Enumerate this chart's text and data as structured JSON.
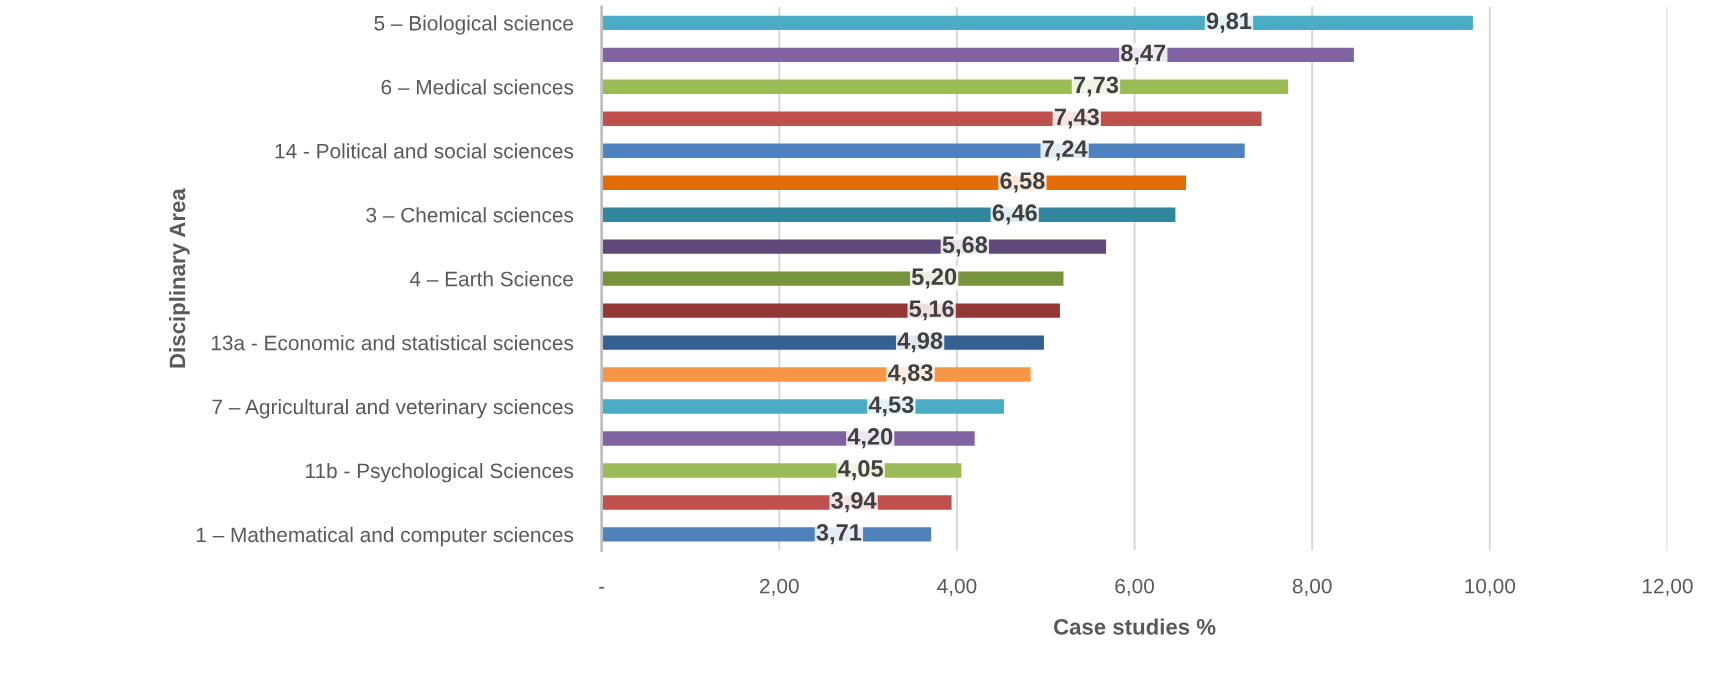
{
  "chart_data": {
    "type": "bar",
    "orientation": "horizontal",
    "xlabel": "Case studies %",
    "ylabel": "Disciplinary Area",
    "categories": [
      "5 – Biological science",
      null,
      "6 – Medical sciences",
      null,
      "14 - Political and social sciences",
      null,
      "3 – Chemical sciences",
      null,
      "4 – Earth Science",
      null,
      "13a - Economic and statistical sciences",
      null,
      "7 – Agricultural and veterinary sciences",
      null,
      "11b - Psychological Sciences",
      null,
      "1 – Mathematical and computer sciences"
    ],
    "values": [
      9.81,
      8.47,
      7.73,
      7.43,
      7.24,
      6.58,
      6.46,
      5.68,
      5.2,
      5.16,
      4.98,
      4.83,
      4.53,
      4.2,
      4.05,
      3.94,
      3.71
    ],
    "colors": [
      "#4bacc6",
      "#8064a2",
      "#9bbb59",
      "#c0504d",
      "#4f81bd",
      "#e36c09",
      "#31859c",
      "#5f497a",
      "#77933c",
      "#953735",
      "#366092",
      "#f79646",
      "#4bacc6",
      "#8064a2",
      "#9bbb59",
      "#c0504d",
      "#4f81bd"
    ],
    "value_labels": [
      "9,81",
      "8,47",
      "7,73",
      "7,43",
      "7,24",
      "6,58",
      "6,46",
      "5,68",
      "5,20",
      "5,16",
      "4,98",
      "4,83",
      "4,53",
      "4,20",
      "4,05",
      "3,94",
      "3,71"
    ],
    "xlim": [
      0,
      12
    ],
    "xticks": [
      {
        "value": 0,
        "label": "-"
      },
      {
        "value": 2,
        "label": "2,00"
      },
      {
        "value": 4,
        "label": "4,00"
      },
      {
        "value": 6,
        "label": "6,00"
      },
      {
        "value": 8,
        "label": "8,00"
      },
      {
        "value": 10,
        "label": "10,00"
      },
      {
        "value": 12,
        "label": "12,00"
      }
    ],
    "grid": "x"
  }
}
